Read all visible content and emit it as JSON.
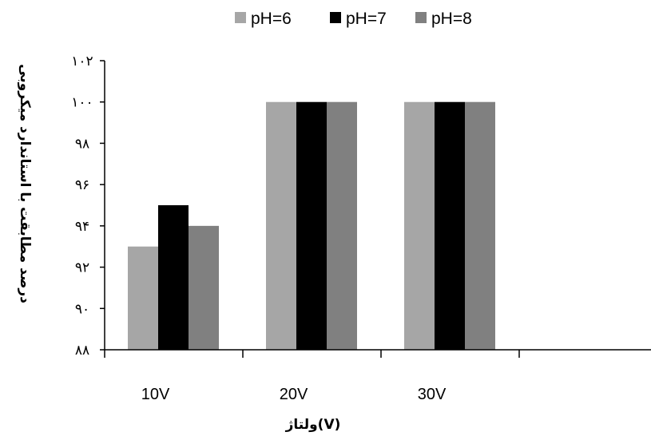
{
  "chart_data": {
    "type": "bar",
    "categories": [
      "10V",
      "20V",
      "30V",
      ""
    ],
    "series": [
      {
        "name": "pH=6",
        "values": [
          93,
          100,
          100,
          null
        ],
        "color": "#a6a6a6"
      },
      {
        "name": "pH=7",
        "values": [
          95,
          100,
          100,
          null
        ],
        "color": "#000000"
      },
      {
        "name": "pH=8",
        "values": [
          94,
          100,
          100,
          null
        ],
        "color": "#808080"
      }
    ],
    "xlabel": "ولتاژ(V)",
    "ylabel": "درصد مطابقت با استاندارد میکروبی",
    "ylim": [
      88,
      102
    ],
    "yticks": [
      {
        "value": 88,
        "label": "۸۸"
      },
      {
        "value": 90,
        "label": "۹۰"
      },
      {
        "value": 92,
        "label": "۹۲"
      },
      {
        "value": 94,
        "label": "۹۴"
      },
      {
        "value": 96,
        "label": "۹۶"
      },
      {
        "value": 98,
        "label": "۹۸"
      },
      {
        "value": 100,
        "label": "۱۰۰"
      },
      {
        "value": 102,
        "label": "۱۰۲"
      }
    ],
    "legend_position": "top",
    "grid": false
  }
}
